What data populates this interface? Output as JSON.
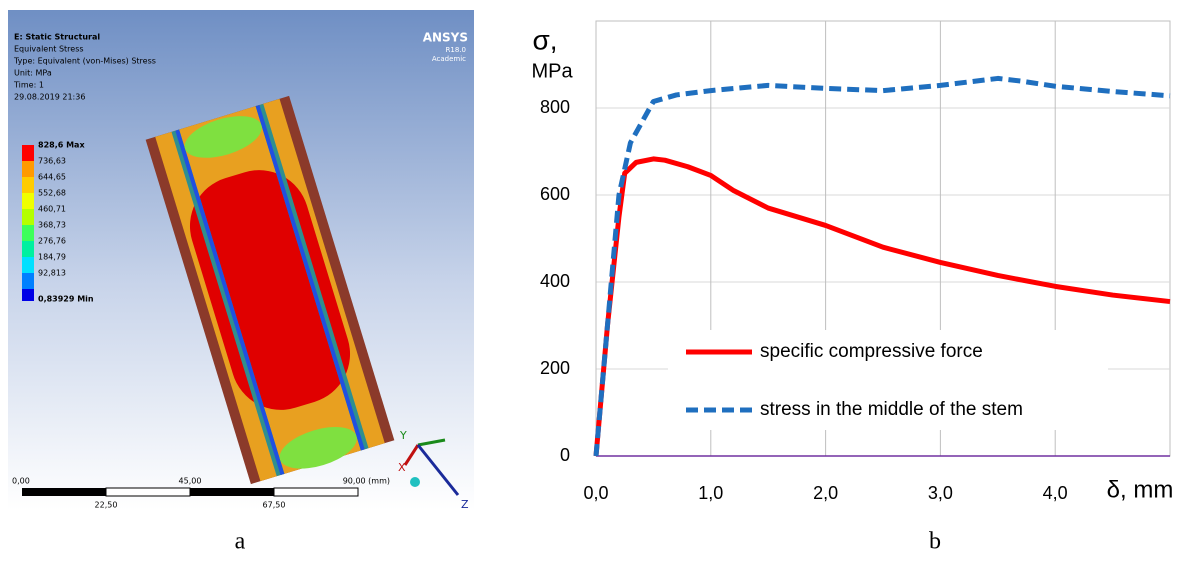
{
  "panel_a": {
    "header": [
      "E: Static Structural",
      "Equivalent Stress",
      "Type: Equivalent (von-Mises) Stress",
      "Unit: MPa",
      "Time: 1",
      "29.08.2019 21:36"
    ],
    "brand": [
      "ANSYS",
      "R18.0",
      "Academic"
    ],
    "contour_legend": [
      "828,6 Max",
      "736,63",
      "644,65",
      "552,68",
      "460,71",
      "368,73",
      "276,76",
      "184,79",
      "92,813",
      "0,83929 Min"
    ],
    "scale_top": [
      "0,00",
      "45,00",
      "90,00 (mm)"
    ],
    "scale_bottom": [
      "22,50",
      "67,50"
    ],
    "axes": [
      "Y",
      "X",
      "Z"
    ],
    "label": "a"
  },
  "panel_b_label": "b",
  "chart_data": {
    "type": "line",
    "y_label_lines": [
      "σ,",
      "MPa"
    ],
    "x_label": "δ, mm",
    "xlim": [
      0,
      5
    ],
    "ylim": [
      0,
      1000
    ],
    "xticks": [
      {
        "value": 0,
        "label": "0,0"
      },
      {
        "value": 1,
        "label": "1,0"
      },
      {
        "value": 2,
        "label": "2,0"
      },
      {
        "value": 3,
        "label": "3,0"
      },
      {
        "value": 4,
        "label": "4,0"
      }
    ],
    "yticks": [
      0,
      200,
      400,
      600,
      800
    ],
    "grid": true,
    "legend": "lower right",
    "series": [
      {
        "name": "specific compressive force",
        "color": "#ff0000",
        "style": "solid",
        "x": [
          0,
          0.05,
          0.1,
          0.2,
          0.25,
          0.35,
          0.5,
          0.6,
          0.8,
          1.0,
          1.2,
          1.5,
          2.0,
          2.5,
          3.0,
          3.5,
          4.0,
          4.5,
          5.0
        ],
        "values": [
          0,
          150,
          300,
          550,
          650,
          675,
          683,
          680,
          665,
          645,
          610,
          570,
          530,
          480,
          445,
          415,
          390,
          370,
          355
        ]
      },
      {
        "name": "stress in the middle of the stem",
        "color": "#1f6fbf",
        "style": "dashed",
        "x": [
          0,
          0.1,
          0.2,
          0.3,
          0.5,
          0.7,
          1.0,
          1.5,
          2.0,
          2.5,
          3.0,
          3.5,
          3.7,
          4.0,
          4.5,
          5.0
        ],
        "values": [
          0,
          300,
          600,
          720,
          815,
          830,
          840,
          852,
          845,
          840,
          852,
          868,
          862,
          850,
          838,
          828
        ]
      }
    ]
  }
}
